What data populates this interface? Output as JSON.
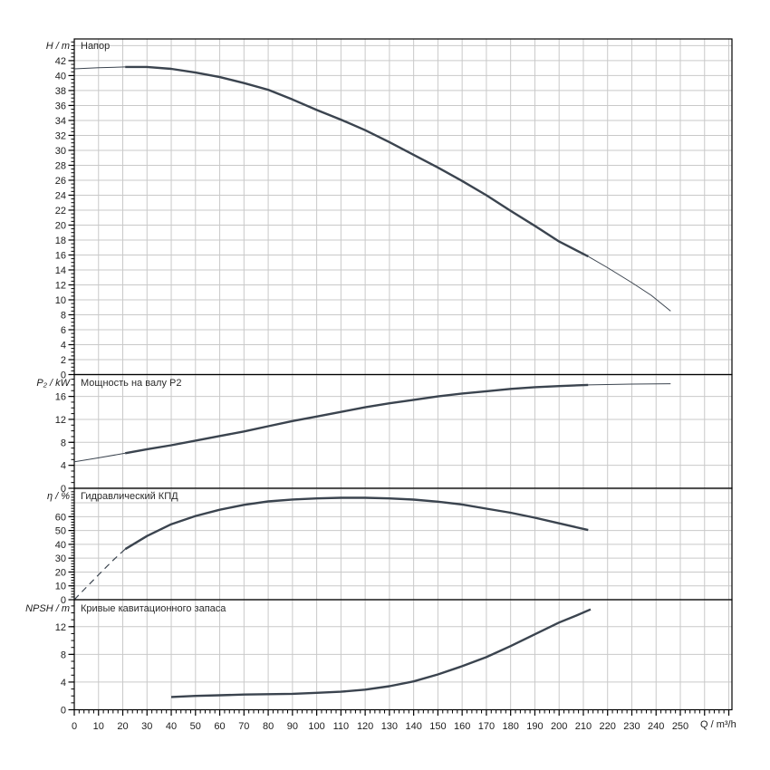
{
  "colors": {
    "background": "#ffffff",
    "curve": "#3b444f",
    "grid": "#c9c9c9",
    "axis": "#000000",
    "text": "#1c1c1c"
  },
  "xaxis": {
    "label": "Q / m³/h",
    "min": 0,
    "max": 271,
    "major_step": 10,
    "minor_step": 2,
    "last_labeled_tick": 250
  },
  "chart_data": [
    {
      "id": "head",
      "type": "line",
      "title": "Напор",
      "ylabel": "H / m",
      "ylim": [
        0,
        44.9
      ],
      "ytick_step": 2,
      "ytick_max": 42,
      "yminor_step": 0.5,
      "grid": true,
      "series": [
        {
          "name": "head-low-flow",
          "style": "thin",
          "points": [
            [
              0,
              40.9
            ],
            [
              10,
              41.05
            ],
            [
              21,
              41.15
            ]
          ]
        },
        {
          "name": "head-main",
          "style": "thick",
          "points": [
            [
              21,
              41.15
            ],
            [
              30,
              41.15
            ],
            [
              40,
              40.9
            ],
            [
              50,
              40.4
            ],
            [
              60,
              39.8
            ],
            [
              70,
              39.0
            ],
            [
              80,
              38.1
            ],
            [
              90,
              36.8
            ],
            [
              100,
              35.4
            ],
            [
              110,
              34.1
            ],
            [
              120,
              32.7
            ],
            [
              130,
              31.1
            ],
            [
              140,
              29.4
            ],
            [
              150,
              27.7
            ],
            [
              160,
              25.9
            ],
            [
              170,
              24.0
            ],
            [
              180,
              21.9
            ],
            [
              190,
              19.9
            ],
            [
              200,
              17.8
            ],
            [
              212,
              15.8
            ]
          ]
        },
        {
          "name": "head-high-flow",
          "style": "thin",
          "points": [
            [
              212,
              15.8
            ],
            [
              220,
              14.3
            ],
            [
              230,
              12.3
            ],
            [
              238,
              10.6
            ],
            [
              246,
              8.5
            ]
          ]
        }
      ]
    },
    {
      "id": "power",
      "type": "line",
      "title": "Мощность на валу P2",
      "ylabel": "P₂ / kW",
      "ylim": [
        0,
        19.8
      ],
      "ytick_step": 4,
      "ytick_max": 16,
      "yminor_step": 1,
      "grid": true,
      "series": [
        {
          "name": "power-low-flow",
          "style": "thin",
          "points": [
            [
              0,
              4.6
            ],
            [
              10,
              5.3
            ],
            [
              21,
              6.1
            ]
          ]
        },
        {
          "name": "power-main",
          "style": "thick",
          "points": [
            [
              21,
              6.1
            ],
            [
              30,
              6.8
            ],
            [
              40,
              7.5
            ],
            [
              50,
              8.3
            ],
            [
              60,
              9.1
            ],
            [
              70,
              9.9
            ],
            [
              80,
              10.8
            ],
            [
              90,
              11.7
            ],
            [
              100,
              12.5
            ],
            [
              110,
              13.3
            ],
            [
              120,
              14.1
            ],
            [
              130,
              14.8
            ],
            [
              140,
              15.4
            ],
            [
              150,
              16.0
            ],
            [
              160,
              16.5
            ],
            [
              170,
              16.9
            ],
            [
              180,
              17.3
            ],
            [
              190,
              17.6
            ],
            [
              200,
              17.8
            ],
            [
              212,
              18.0
            ]
          ]
        },
        {
          "name": "power-high-flow",
          "style": "thin",
          "points": [
            [
              212,
              18.0
            ],
            [
              230,
              18.15
            ],
            [
              246,
              18.2
            ]
          ]
        }
      ]
    },
    {
      "id": "efficiency",
      "type": "line",
      "title": "Гидравлический КПД",
      "ylabel": "η / %",
      "ylim": [
        0,
        80.5
      ],
      "ytick_step": 10,
      "ytick_max": 60,
      "yminor_step": 2,
      "grid": true,
      "series": [
        {
          "name": "efficiency-low-flow",
          "style": "dashed",
          "points": [
            [
              0,
              0
            ],
            [
              5,
              9
            ],
            [
              10,
              18
            ],
            [
              16,
              28.5
            ],
            [
              21,
              36.5
            ]
          ]
        },
        {
          "name": "efficiency-main",
          "style": "thick",
          "points": [
            [
              21,
              36.5
            ],
            [
              30,
              46
            ],
            [
              40,
              54.5
            ],
            [
              50,
              60.5
            ],
            [
              60,
              65
            ],
            [
              70,
              68.5
            ],
            [
              80,
              71
            ],
            [
              90,
              72.4
            ],
            [
              100,
              73.2
            ],
            [
              110,
              73.6
            ],
            [
              120,
              73.6
            ],
            [
              130,
              73.2
            ],
            [
              140,
              72.3
            ],
            [
              150,
              70.8
            ],
            [
              160,
              68.8
            ],
            [
              170,
              65.8
            ],
            [
              180,
              62.8
            ],
            [
              190,
              59.2
            ],
            [
              200,
              55.2
            ],
            [
              212,
              50.3
            ]
          ]
        }
      ]
    },
    {
      "id": "npsh",
      "type": "line",
      "title": "Кривые кавитационного запаса",
      "ylabel": "NPSH / m",
      "ylim": [
        0,
        15.9
      ],
      "ytick_step": 4,
      "ytick_max": 12,
      "yminor_step": 1,
      "grid": true,
      "series": [
        {
          "name": "npsh-main",
          "style": "thick",
          "points": [
            [
              40,
              1.85
            ],
            [
              50,
              2.0
            ],
            [
              60,
              2.1
            ],
            [
              70,
              2.2
            ],
            [
              80,
              2.25
            ],
            [
              90,
              2.3
            ],
            [
              100,
              2.45
            ],
            [
              110,
              2.6
            ],
            [
              120,
              2.9
            ],
            [
              130,
              3.4
            ],
            [
              140,
              4.1
            ],
            [
              150,
              5.1
            ],
            [
              160,
              6.3
            ],
            [
              170,
              7.6
            ],
            [
              180,
              9.2
            ],
            [
              190,
              10.9
            ],
            [
              200,
              12.6
            ],
            [
              207,
              13.6
            ],
            [
              213,
              14.5
            ]
          ]
        }
      ]
    }
  ]
}
